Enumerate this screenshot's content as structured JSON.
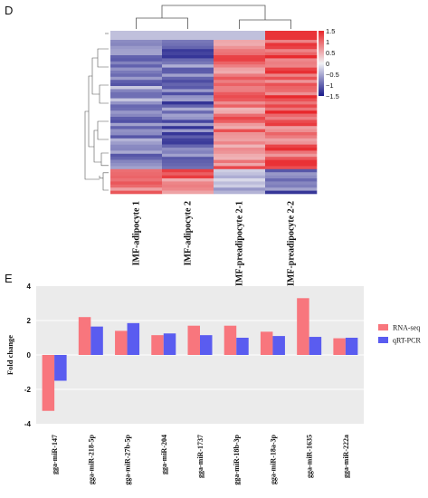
{
  "chart_data": [
    {
      "panel": "D",
      "type": "heatmap",
      "columns": [
        "IMF-adipocyte 1",
        "IMF-adipocyte 2",
        "IMF-preadipocyte 2-1",
        "IMF-preadipocyte 2-2"
      ],
      "colorbar_ticks": [
        "1.5",
        "1",
        "0.5",
        "0",
        "−0.5",
        "−1",
        "−1.5"
      ],
      "color_range": [
        -1.5,
        1.5
      ],
      "colors": {
        "low": "#1a1a8a",
        "mid": "#f2f2f5",
        "high": "#e8262a"
      },
      "clusters": [
        {
          "rows": 42,
          "means": [
            -0.7,
            -0.9,
            0.9,
            1.05
          ]
        },
        {
          "rows": 8,
          "means": [
            1.0,
            0.9,
            -0.6,
            -1.0
          ]
        }
      ]
    },
    {
      "panel": "E",
      "type": "bar",
      "categories": [
        "gga-miR-147",
        "gga-miR-218-5p",
        "gga-miR-27b-5p",
        "gga-miR-204",
        "gga-miR-1737",
        "gga-miR-18b-3p",
        "gga-miR-18a-3p",
        "gga-miR-1635",
        "gga-miR-222a"
      ],
      "series": [
        {
          "name": "RNA-seq",
          "color": "#f8767d",
          "values": [
            -3.25,
            2.2,
            1.4,
            1.15,
            1.7,
            1.7,
            1.35,
            3.3,
            0.97
          ]
        },
        {
          "name": "qRT-PCR",
          "color": "#5a5cf0",
          "values": [
            -1.5,
            1.65,
            1.85,
            1.25,
            1.15,
            1.0,
            1.1,
            1.05,
            1.0
          ]
        }
      ],
      "ylabel": "Fold change",
      "ylim": [
        -4,
        4
      ],
      "yticks": [
        -4,
        -2,
        0,
        2,
        4
      ],
      "grid": true,
      "legend": "right"
    }
  ]
}
